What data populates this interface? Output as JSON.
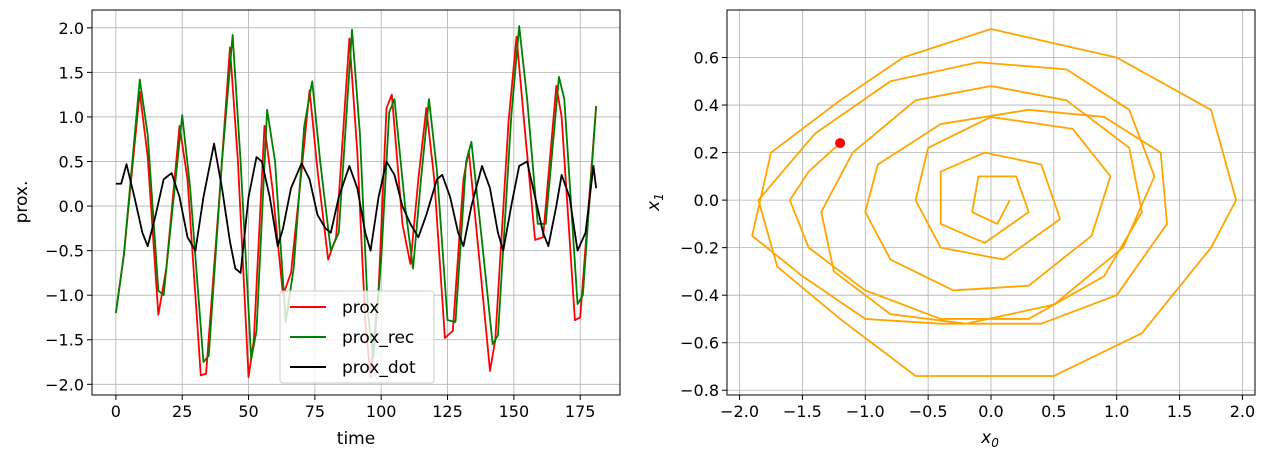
{
  "chart_data": [
    {
      "type": "line",
      "xlabel": "time",
      "ylabel": "prox.",
      "xlim": [
        -9,
        190
      ],
      "ylim": [
        -2.12,
        2.2
      ],
      "xticks": [
        0,
        25,
        50,
        75,
        100,
        125,
        150,
        175
      ],
      "yticks": [
        -2.0,
        -1.5,
        -1.0,
        -0.5,
        0.0,
        0.5,
        1.0,
        1.5,
        2.0
      ],
      "grid": true,
      "legend_position": "lower-center",
      "x_range": [
        0,
        181
      ],
      "series": [
        {
          "name": "prox",
          "color": "#ff0000",
          "keypoints": [
            [
              0,
              -1.2
            ],
            [
              3,
              -0.55
            ],
            [
              9,
              1.28
            ],
            [
              12,
              0.55
            ],
            [
              16,
              -1.22
            ],
            [
              19,
              -0.7
            ],
            [
              24,
              0.9
            ],
            [
              27,
              0.3
            ],
            [
              32,
              -1.9
            ],
            [
              34,
              -1.88
            ],
            [
              39,
              0.1
            ],
            [
              43,
              1.78
            ],
            [
              46,
              0.5
            ],
            [
              50,
              -1.92
            ],
            [
              52,
              -1.5
            ],
            [
              56,
              0.9
            ],
            [
              59,
              0.2
            ],
            [
              63,
              -1.0
            ],
            [
              66,
              -0.75
            ],
            [
              70,
              0.4
            ],
            [
              73,
              1.3
            ],
            [
              76,
              0.4
            ],
            [
              80,
              -0.6
            ],
            [
              83,
              -0.35
            ],
            [
              88,
              1.88
            ],
            [
              91,
              0.6
            ],
            [
              94,
              -1.3
            ],
            [
              96,
              -1.92
            ],
            [
              99,
              -0.95
            ],
            [
              102,
              1.1
            ],
            [
              104,
              1.25
            ],
            [
              108,
              -0.2
            ],
            [
              111,
              -0.65
            ],
            [
              114,
              0.3
            ],
            [
              117,
              1.1
            ],
            [
              120,
              0.3
            ],
            [
              124,
              -1.48
            ],
            [
              127,
              -1.4
            ],
            [
              131,
              0.3
            ],
            [
              133,
              0.62
            ],
            [
              137,
              -0.6
            ],
            [
              141,
              -1.85
            ],
            [
              143,
              -1.5
            ],
            [
              148,
              0.95
            ],
            [
              151,
              1.9
            ],
            [
              154,
              0.9
            ],
            [
              158,
              -0.38
            ],
            [
              161,
              -0.35
            ],
            [
              166,
              1.35
            ],
            [
              168,
              1.0
            ],
            [
              173,
              -1.28
            ],
            [
              175,
              -1.25
            ],
            [
              181,
              1.12
            ]
          ]
        },
        {
          "name": "prox_rec",
          "color": "#008000",
          "keypoints": [
            [
              0,
              -1.2
            ],
            [
              3,
              -0.55
            ],
            [
              9,
              1.42
            ],
            [
              12,
              0.8
            ],
            [
              16,
              -0.95
            ],
            [
              18,
              -1.0
            ],
            [
              25,
              1.02
            ],
            [
              28,
              0.2
            ],
            [
              33,
              -1.75
            ],
            [
              35,
              -1.68
            ],
            [
              40,
              0.5
            ],
            [
              44,
              1.92
            ],
            [
              47,
              0.5
            ],
            [
              51,
              -1.72
            ],
            [
              53,
              -1.4
            ],
            [
              57,
              1.08
            ],
            [
              60,
              0.5
            ],
            [
              64,
              -1.3
            ],
            [
              67,
              -0.7
            ],
            [
              71,
              0.9
            ],
            [
              74,
              1.4
            ],
            [
              77,
              0.5
            ],
            [
              81,
              -0.5
            ],
            [
              84,
              -0.3
            ],
            [
              89,
              1.98
            ],
            [
              92,
              0.8
            ],
            [
              95,
              -1.2
            ],
            [
              97,
              -1.7
            ],
            [
              100,
              -0.6
            ],
            [
              103,
              1.05
            ],
            [
              105,
              1.2
            ],
            [
              109,
              0.0
            ],
            [
              112,
              -0.7
            ],
            [
              115,
              0.3
            ],
            [
              118,
              1.2
            ],
            [
              121,
              0.4
            ],
            [
              125,
              -1.28
            ],
            [
              128,
              -1.3
            ],
            [
              132,
              0.5
            ],
            [
              134,
              0.72
            ],
            [
              138,
              -0.4
            ],
            [
              142,
              -1.55
            ],
            [
              144,
              -1.45
            ],
            [
              149,
              1.0
            ],
            [
              152,
              2.02
            ],
            [
              155,
              1.2
            ],
            [
              159,
              -0.2
            ],
            [
              162,
              -0.2
            ],
            [
              167,
              1.45
            ],
            [
              169,
              1.2
            ],
            [
              174,
              -1.1
            ],
            [
              176,
              -1.0
            ],
            [
              181,
              1.12
            ]
          ]
        },
        {
          "name": "prox_dot",
          "color": "#000000",
          "keypoints": [
            [
              0,
              0.25
            ],
            [
              2,
              0.25
            ],
            [
              4,
              0.47
            ],
            [
              7,
              0.1
            ],
            [
              10,
              -0.3
            ],
            [
              12,
              -0.45
            ],
            [
              15,
              -0.1
            ],
            [
              18,
              0.3
            ],
            [
              21,
              0.37
            ],
            [
              24,
              0.1
            ],
            [
              27,
              -0.35
            ],
            [
              30,
              -0.5
            ],
            [
              33,
              0.1
            ],
            [
              37,
              0.7
            ],
            [
              40,
              0.2
            ],
            [
              43,
              -0.4
            ],
            [
              45,
              -0.7
            ],
            [
              47,
              -0.75
            ],
            [
              50,
              0.1
            ],
            [
              53,
              0.55
            ],
            [
              55,
              0.5
            ],
            [
              58,
              0.1
            ],
            [
              61,
              -0.45
            ],
            [
              63,
              -0.25
            ],
            [
              66,
              0.2
            ],
            [
              70,
              0.48
            ],
            [
              73,
              0.3
            ],
            [
              76,
              -0.1
            ],
            [
              79,
              -0.25
            ],
            [
              81,
              -0.3
            ],
            [
              84,
              0.1
            ],
            [
              88,
              0.45
            ],
            [
              91,
              0.2
            ],
            [
              94,
              -0.3
            ],
            [
              96,
              -0.5
            ],
            [
              99,
              0.1
            ],
            [
              102,
              0.5
            ],
            [
              105,
              0.35
            ],
            [
              108,
              0.0
            ],
            [
              111,
              -0.2
            ],
            [
              114,
              -0.35
            ],
            [
              117,
              -0.1
            ],
            [
              121,
              0.3
            ],
            [
              123,
              0.35
            ],
            [
              126,
              0.1
            ],
            [
              129,
              -0.3
            ],
            [
              131,
              -0.45
            ],
            [
              134,
              0.0
            ],
            [
              138,
              0.45
            ],
            [
              141,
              0.2
            ],
            [
              144,
              -0.3
            ],
            [
              146,
              -0.5
            ],
            [
              149,
              0.0
            ],
            [
              152,
              0.45
            ],
            [
              155,
              0.5
            ],
            [
              158,
              0.1
            ],
            [
              161,
              -0.3
            ],
            [
              163,
              -0.45
            ],
            [
              166,
              0.0
            ],
            [
              168,
              0.35
            ],
            [
              171,
              0.1
            ],
            [
              174,
              -0.5
            ],
            [
              177,
              -0.3
            ],
            [
              180,
              0.45
            ],
            [
              181,
              0.2
            ]
          ]
        }
      ]
    },
    {
      "type": "line",
      "xlabel": "x_0",
      "ylabel": "x_1",
      "xlim": [
        -2.1,
        2.1
      ],
      "ylim": [
        -0.82,
        0.8
      ],
      "xticks": [
        -2.0,
        -1.5,
        -1.0,
        -0.5,
        0.0,
        0.5,
        1.0,
        1.5,
        2.0
      ],
      "yticks": [
        -0.8,
        -0.6,
        -0.4,
        -0.2,
        0.0,
        0.2,
        0.4,
        0.6
      ],
      "grid": true,
      "series": [
        {
          "name": "trajectory",
          "color": "#ffa500",
          "points": [
            [
              -1.2,
              0.24
            ],
            [
              -1.45,
              0.12
            ],
            [
              -1.6,
              0.0
            ],
            [
              -1.45,
              -0.2
            ],
            [
              -1.0,
              -0.38
            ],
            [
              -0.4,
              -0.5
            ],
            [
              0.3,
              -0.5
            ],
            [
              0.9,
              -0.32
            ],
            [
              1.2,
              -0.05
            ],
            [
              1.1,
              0.22
            ],
            [
              0.6,
              0.42
            ],
            [
              0.0,
              0.48
            ],
            [
              -0.6,
              0.42
            ],
            [
              -1.1,
              0.2
            ],
            [
              -1.35,
              -0.05
            ],
            [
              -1.25,
              -0.3
            ],
            [
              -0.8,
              -0.48
            ],
            [
              -0.2,
              -0.52
            ],
            [
              0.5,
              -0.44
            ],
            [
              1.05,
              -0.2
            ],
            [
              1.3,
              0.1
            ],
            [
              1.1,
              0.38
            ],
            [
              0.6,
              0.55
            ],
            [
              -0.1,
              0.58
            ],
            [
              -0.8,
              0.5
            ],
            [
              -1.4,
              0.28
            ],
            [
              -1.85,
              0.0
            ],
            [
              -1.7,
              -0.28
            ],
            [
              -1.2,
              -0.5
            ],
            [
              -0.6,
              -0.74
            ],
            [
              0.5,
              -0.74
            ],
            [
              1.2,
              -0.56
            ],
            [
              1.75,
              -0.2
            ],
            [
              1.95,
              0.0
            ],
            [
              1.75,
              0.38
            ],
            [
              1.0,
              0.6
            ],
            [
              0.0,
              0.72
            ],
            [
              -0.7,
              0.6
            ],
            [
              -1.2,
              0.42
            ],
            [
              -1.75,
              0.2
            ],
            [
              -1.9,
              -0.15
            ],
            [
              -1.5,
              -0.32
            ],
            [
              -1.0,
              -0.5
            ],
            [
              -0.4,
              -0.52
            ],
            [
              0.4,
              -0.52
            ],
            [
              1.0,
              -0.4
            ],
            [
              1.4,
              -0.1
            ],
            [
              1.35,
              0.2
            ],
            [
              0.9,
              0.35
            ],
            [
              0.3,
              0.38
            ],
            [
              -0.4,
              0.32
            ],
            [
              -0.9,
              0.15
            ],
            [
              -1.0,
              -0.05
            ],
            [
              -0.8,
              -0.25
            ],
            [
              -0.3,
              -0.38
            ],
            [
              0.3,
              -0.36
            ],
            [
              0.8,
              -0.15
            ],
            [
              0.95,
              0.1
            ],
            [
              0.65,
              0.3
            ],
            [
              0.0,
              0.35
            ],
            [
              -0.5,
              0.22
            ],
            [
              -0.6,
              0.0
            ],
            [
              -0.4,
              -0.2
            ],
            [
              0.1,
              -0.25
            ],
            [
              0.55,
              -0.08
            ],
            [
              0.4,
              0.15
            ],
            [
              -0.05,
              0.2
            ],
            [
              -0.4,
              0.12
            ],
            [
              -0.4,
              -0.1
            ],
            [
              -0.05,
              -0.18
            ],
            [
              0.3,
              -0.05
            ],
            [
              0.2,
              0.1
            ],
            [
              -0.1,
              0.1
            ],
            [
              -0.15,
              -0.05
            ],
            [
              0.05,
              -0.1
            ],
            [
              0.15,
              0.0
            ]
          ]
        },
        {
          "name": "start-point",
          "color": "#ff0000",
          "points": [
            [
              -1.2,
              0.24
            ]
          ]
        }
      ]
    }
  ]
}
